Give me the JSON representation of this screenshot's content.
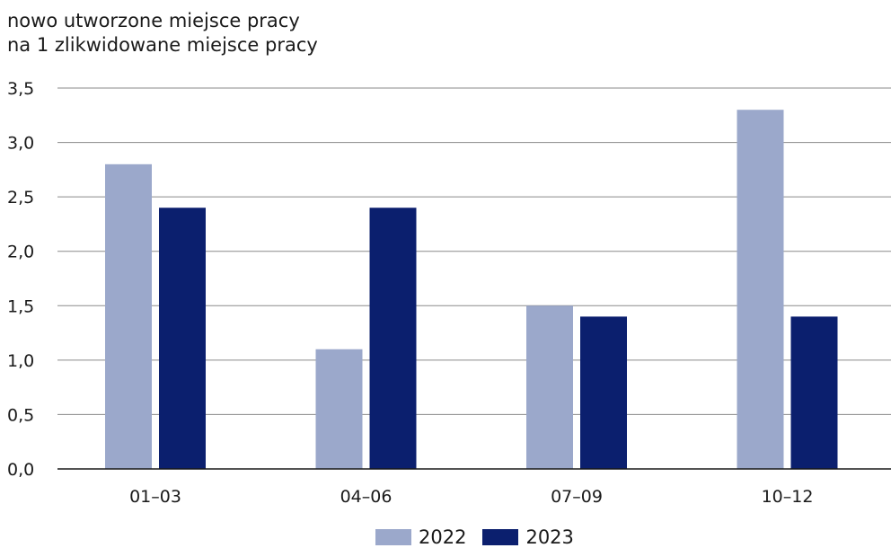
{
  "chart_data": {
    "type": "bar",
    "ylabel_lines": [
      "nowo utworzone miejsce pracy",
      "na 1 zlikwidowane miejsce pracy"
    ],
    "categories": [
      "01–03",
      "04–06",
      "07–09",
      "10–12"
    ],
    "series": [
      {
        "name": "2022",
        "color": "#9ba8cb",
        "values": [
          2.8,
          1.1,
          1.5,
          3.3
        ]
      },
      {
        "name": "2023",
        "color": "#0b1f6e",
        "values": [
          2.4,
          2.4,
          1.4,
          1.4
        ]
      }
    ],
    "ylim": [
      0,
      3.5
    ],
    "yticks": [
      "0,0",
      "0,5",
      "1,0",
      "1,5",
      "2,0",
      "2,5",
      "3,0",
      "3,5"
    ],
    "grid": true,
    "legend_position": "bottom-center"
  }
}
